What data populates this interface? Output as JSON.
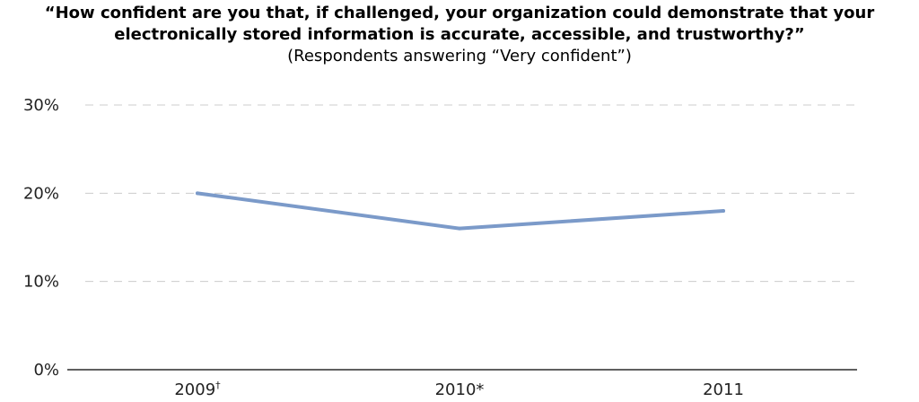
{
  "chart_data": {
    "type": "line",
    "title_lines": [
      "“How confident are you that, if challenged, your organization could demonstrate that your",
      "electronically stored information is accurate, accessible, and trustworthy?”"
    ],
    "subtitle": "(Respondents answering “Very confident”)",
    "categories": [
      "2009",
      "2010",
      "2011"
    ],
    "category_marks": [
      "†",
      "*",
      ""
    ],
    "series": [
      {
        "values": [
          20,
          16,
          18
        ]
      }
    ],
    "ylim": [
      0,
      30
    ],
    "yticks": [
      0,
      10,
      20,
      30
    ],
    "ytick_labels": [
      "0%",
      "10%",
      "20%",
      "30%"
    ],
    "grid": true,
    "line_color": "#7b9ac9",
    "grid_color": "#cccccc",
    "axis_color": "#000000"
  }
}
